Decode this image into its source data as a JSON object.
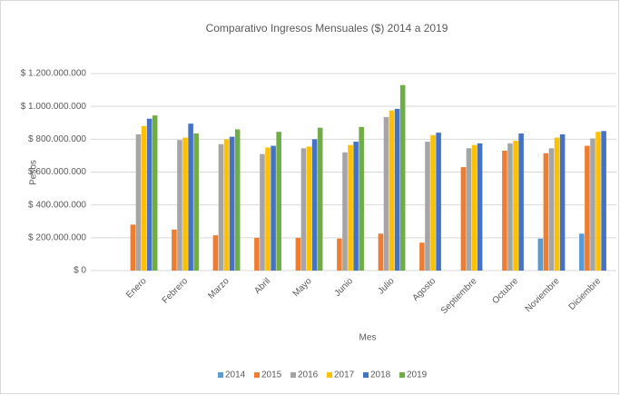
{
  "chart_data": {
    "type": "bar",
    "title": "Comparativo Ingresos Mensuales ($) 2014 a 2019",
    "xlabel": "Mes",
    "ylabel": "Pesos",
    "categories": [
      "Enero",
      "Febrero",
      "Marzo",
      "Abril",
      "Mayo",
      "Junio",
      "Julio",
      "Agosto",
      "Septiembre",
      "Octubre",
      "Noviembre",
      "Diciembre"
    ],
    "series": [
      {
        "name": "2014",
        "color": "#5b9bd5",
        "values": [
          null,
          null,
          null,
          null,
          null,
          null,
          null,
          null,
          null,
          null,
          195000000,
          225000000
        ]
      },
      {
        "name": "2015",
        "color": "#ed7d31",
        "values": [
          280000000,
          250000000,
          215000000,
          200000000,
          200000000,
          195000000,
          225000000,
          170000000,
          630000000,
          730000000,
          715000000,
          760000000
        ]
      },
      {
        "name": "2016",
        "color": "#a5a5a5",
        "values": [
          830000000,
          795000000,
          770000000,
          710000000,
          745000000,
          720000000,
          935000000,
          785000000,
          745000000,
          775000000,
          745000000,
          805000000
        ]
      },
      {
        "name": "2017",
        "color": "#ffc000",
        "values": [
          880000000,
          810000000,
          800000000,
          750000000,
          755000000,
          765000000,
          975000000,
          825000000,
          765000000,
          790000000,
          810000000,
          845000000
        ]
      },
      {
        "name": "2018",
        "color": "#4472c4",
        "values": [
          925000000,
          895000000,
          815000000,
          760000000,
          800000000,
          785000000,
          985000000,
          840000000,
          775000000,
          835000000,
          830000000,
          850000000
        ]
      },
      {
        "name": "2019",
        "color": "#70ad47",
        "values": [
          945000000,
          835000000,
          860000000,
          845000000,
          870000000,
          875000000,
          1130000000,
          null,
          null,
          null,
          null,
          null
        ]
      }
    ],
    "ylim": [
      0,
      1200000000
    ],
    "yticks": [
      {
        "value": 0,
        "label": "$ 0"
      },
      {
        "value": 200000000,
        "label": "$ 200.000.000"
      },
      {
        "value": 400000000,
        "label": "$ 400.000.000"
      },
      {
        "value": 600000000,
        "label": "$ 600.000.000"
      },
      {
        "value": 800000000,
        "label": "$ 800.000.000"
      },
      {
        "value": 1000000000,
        "label": "$ 1.000.000.000"
      },
      {
        "value": 1200000000,
        "label": "$ 1.200.000.000"
      }
    ],
    "grid": true,
    "legend": "bottom"
  }
}
